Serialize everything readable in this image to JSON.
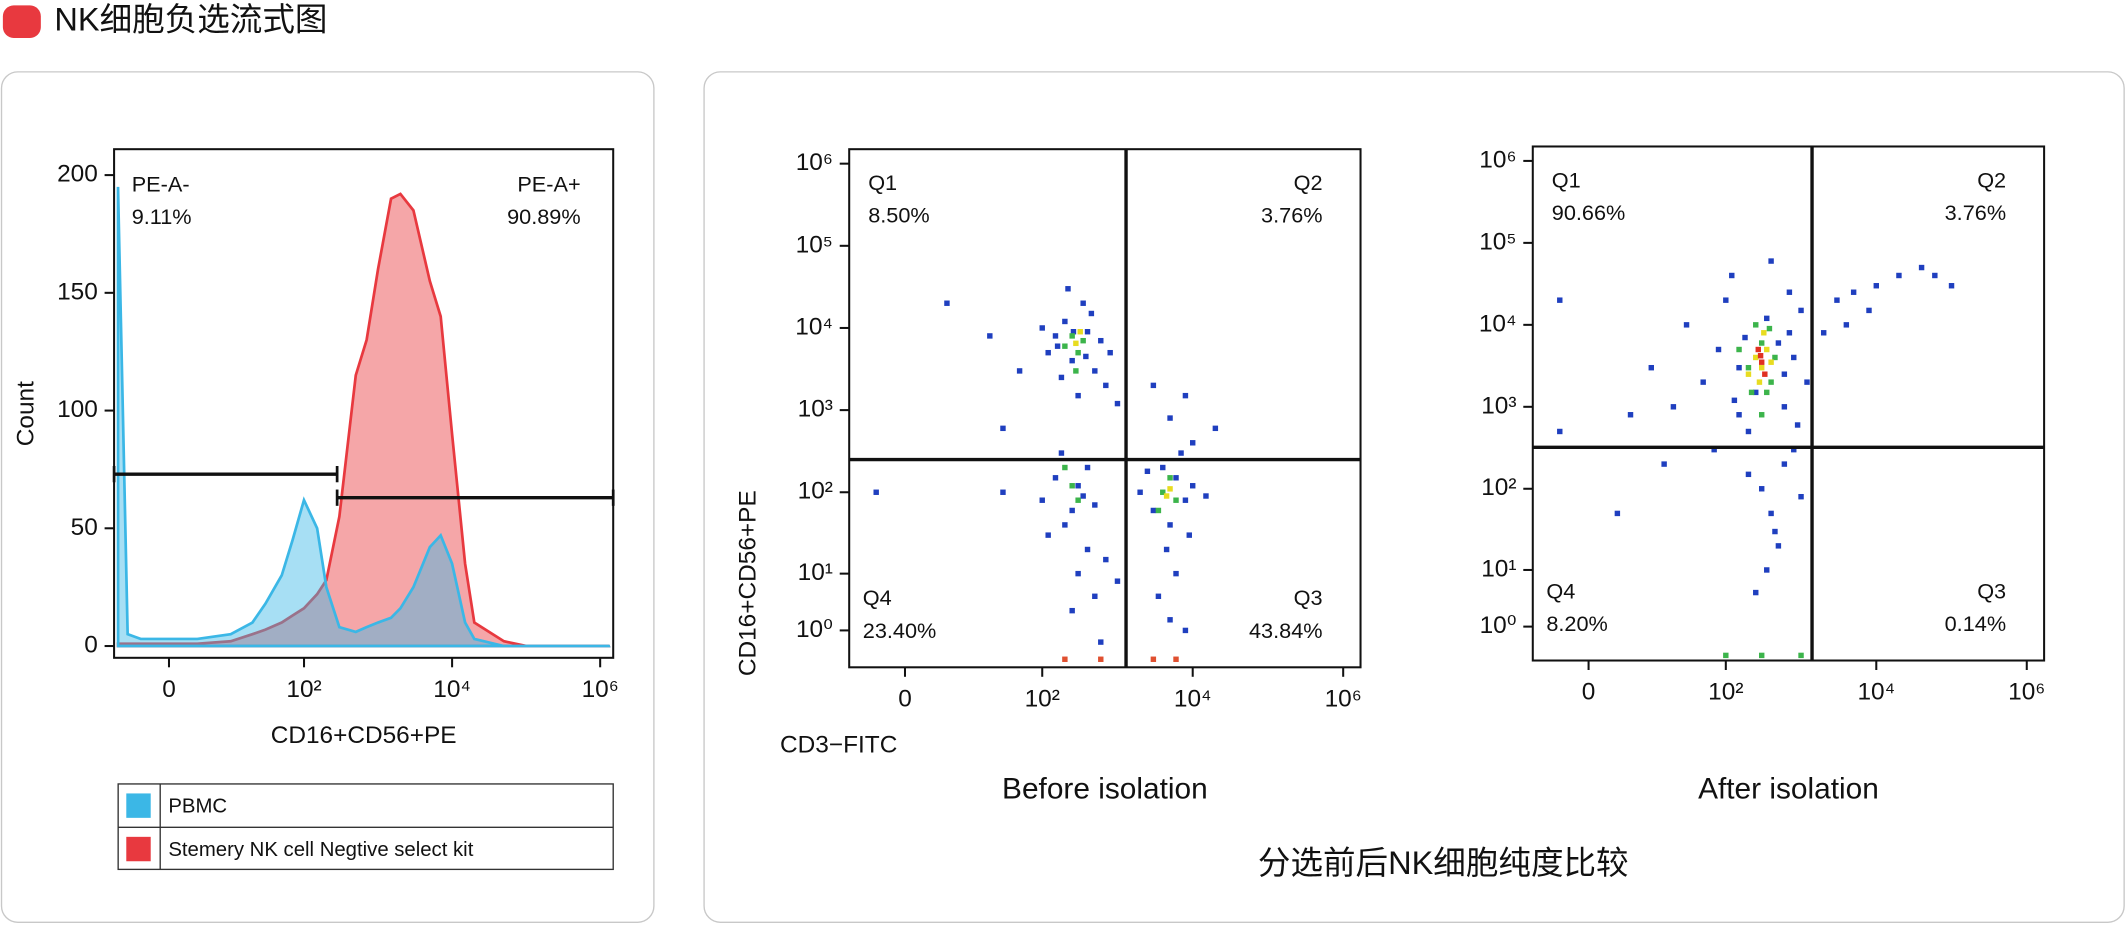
{
  "header": {
    "title": "NK细胞负选流式图"
  },
  "chart_data": [
    {
      "type": "area",
      "xlabel": "CD16+CD56+PE",
      "ylabel": "Count",
      "xscale": "biexponential",
      "x": [
        -7,
        -5,
        -3,
        0,
        3,
        10,
        20,
        30,
        50,
        70,
        100,
        150,
        200,
        300,
        500,
        700,
        1000,
        1500,
        2000,
        3000,
        5000,
        7000,
        10000,
        15000,
        20000,
        50000,
        100000,
        1000000,
        1300000
      ],
      "series": [
        {
          "name": "Stemery NK cell Negtive select kit",
          "color": "#e8393f",
          "values": [
            1,
            1,
            1,
            1,
            1,
            2,
            5,
            7,
            10,
            13,
            16,
            22,
            28,
            55,
            115,
            130,
            160,
            190,
            192,
            185,
            155,
            140,
            90,
            35,
            10,
            2,
            0,
            0,
            0
          ]
        },
        {
          "name": "PBMC",
          "color": "#3bb7e6",
          "values": [
            195,
            5,
            3,
            3,
            3,
            5,
            10,
            18,
            30,
            45,
            62,
            50,
            25,
            8,
            6,
            8,
            10,
            12,
            16,
            25,
            42,
            47,
            35,
            10,
            3,
            0,
            0,
            0,
            0
          ]
        }
      ],
      "xlim": [
        -8,
        1500000
      ],
      "ylim": [
        -5,
        211
      ],
      "xticks": [
        0,
        {
          "value": 100,
          "label": "10²"
        },
        {
          "value": 10000,
          "label": "10⁴"
        },
        {
          "value": 1000000,
          "label": "10⁶"
        }
      ],
      "yticks": [
        0,
        50,
        100,
        150,
        200
      ],
      "gates": [
        {
          "label": "PE-A-",
          "percent": "9.11%",
          "x": [
            -8,
            280
          ],
          "y": 73
        },
        {
          "label": "PE-A+",
          "percent": "90.89%",
          "x": [
            280,
            1500000
          ],
          "y": 63
        }
      ],
      "legend": "bottom"
    },
    {
      "type": "scatter",
      "title": "Before isolation",
      "xlabel": "CD3−FITC",
      "ylabel": "CD16+CD56+PE",
      "xscale": "biexponential",
      "yscale": "biexponential",
      "xlim": [
        -8,
        1700000
      ],
      "ylim": [
        -2.3,
        1500000
      ],
      "xticks": [
        0,
        {
          "value": 100,
          "label": "10²"
        },
        {
          "value": 10000,
          "label": "10⁴"
        },
        {
          "value": 1000000,
          "label": "10⁶"
        }
      ],
      "yticks": [
        {
          "value": 1,
          "label": "10⁰"
        },
        {
          "value": 10,
          "label": "10¹"
        },
        {
          "value": 100,
          "label": "10²"
        },
        {
          "value": 1000,
          "label": "10³"
        },
        {
          "value": 10000,
          "label": "10⁴"
        },
        {
          "value": 100000,
          "label": "10⁵"
        },
        {
          "value": 1000000,
          "label": "10⁶"
        }
      ],
      "gate": {
        "x": 1300,
        "y": 250
      },
      "quadrants": [
        {
          "name": "Q1",
          "percent": "8.50%"
        },
        {
          "name": "Q2",
          "percent": "3.76%"
        },
        {
          "name": "Q3",
          "percent": "43.84%"
        },
        {
          "name": "Q4",
          "percent": "23.40%"
        }
      ],
      "series": [
        {
          "color": "#1f3fbf",
          "x": [
            150,
            200,
            250,
            400,
            500,
            120,
            350,
            600,
            180,
            450,
            800,
            100,
            220,
            700,
            300,
            260,
            160,
            380,
            5,
            20,
            1000,
            50,
            30,
            3000,
            5000,
            8000,
            20000,
            10000,
            2000,
            3000,
            4000,
            6000,
            8000,
            10000,
            5000,
            7000,
            2500,
            15000,
            4500,
            6000,
            3500,
            9000,
            100,
            150,
            250,
            300,
            400,
            200,
            350,
            500,
            120,
            180,
            300,
            500,
            250,
            700,
            1000,
            5000,
            8000,
            600,
            30,
            -3,
            400
          ],
          "y": [
            8000,
            12000,
            4000,
            9000,
            3000,
            5000,
            20000,
            7000,
            2500,
            15000,
            5000,
            10000,
            30000,
            2000,
            1500,
            9000,
            6000,
            4500,
            20000,
            8000,
            1200,
            3000,
            600,
            2000,
            800,
            1500,
            600,
            400,
            100,
            60,
            200,
            150,
            80,
            120,
            40,
            300,
            180,
            90,
            20,
            10,
            5,
            30,
            80,
            150,
            60,
            120,
            200,
            40,
            90,
            70,
            30,
            300,
            10,
            5,
            3,
            15,
            8,
            2,
            1,
            0,
            100,
            100,
            20
          ]
        },
        {
          "color": "#3cb44b",
          "x": [
            250,
            300,
            200,
            350,
            280,
            4000,
            5000,
            6000,
            3500,
            250,
            200,
            300
          ],
          "y": [
            8000,
            5000,
            6000,
            7000,
            3000,
            100,
            150,
            80,
            60,
            120,
            200,
            80
          ]
        },
        {
          "color": "#e8dc20",
          "x": [
            280,
            320,
            5000,
            4500
          ],
          "y": [
            6500,
            9000,
            110,
            90
          ]
        },
        {
          "color": "#e05030",
          "x": [
            200,
            600,
            3000,
            6000
          ],
          "y": [
            -1.5,
            -1.5,
            -1.5,
            -1.5
          ]
        }
      ]
    },
    {
      "type": "scatter",
      "title": "After isolation",
      "xscale": "biexponential",
      "yscale": "biexponential",
      "xlim": [
        -8,
        1700000
      ],
      "ylim": [
        -2,
        1500000
      ],
      "xticks": [
        0,
        {
          "value": 100,
          "label": "10²"
        },
        {
          "value": 10000,
          "label": "10⁴"
        },
        {
          "value": 1000000,
          "label": "10⁶"
        }
      ],
      "yticks": [
        {
          "value": 1,
          "label": "10⁰"
        },
        {
          "value": 10,
          "label": "10¹"
        },
        {
          "value": 100,
          "label": "10²"
        },
        {
          "value": 1000,
          "label": "10³"
        },
        {
          "value": 10000,
          "label": "10⁴"
        },
        {
          "value": 100000,
          "label": "10⁵"
        },
        {
          "value": 1000000,
          "label": "10⁶"
        }
      ],
      "gate": {
        "x": 1400,
        "y": 320
      },
      "quadrants": [
        {
          "name": "Q1",
          "percent": "90.66%"
        },
        {
          "name": "Q2",
          "percent": "3.76%"
        },
        {
          "name": "Q3",
          "percent": "0.14%"
        },
        {
          "name": "Q4",
          "percent": "8.20%"
        }
      ],
      "series": [
        {
          "color": "#1f3fbf",
          "x": [
            50,
            80,
            100,
            150,
            600,
            800,
            1000,
            400,
            200,
            30,
            10,
            5,
            70,
            900,
            120,
            700,
            300,
            400,
            500,
            350,
            250,
            600,
            450,
            200,
            800,
            1200,
            1000,
            -3,
            -3,
            20,
            3,
            15,
            3000,
            5000,
            10000,
            20000,
            40000,
            60000,
            2000,
            8000,
            100000,
            4000,
            150,
            250,
            500,
            350,
            180,
            600,
            130,
            700
          ],
          "y": [
            2000,
            5000,
            20000,
            800,
            1000,
            4000,
            15000,
            60000,
            500,
            10000,
            3000,
            800,
            300,
            600,
            40000,
            25000,
            100,
            50,
            20,
            10,
            5,
            200,
            30,
            150,
            300,
            2000,
            80,
            20000,
            500,
            1000,
            50,
            200,
            20000,
            25000,
            30000,
            40000,
            50000,
            40000,
            8000,
            15000,
            30000,
            10000,
            3000,
            1500,
            6000,
            12000,
            7000,
            2500,
            1200,
            8000
          ]
        },
        {
          "color": "#3cb44b",
          "x": [
            200,
            300,
            400,
            250,
            350,
            150,
            450,
            300,
            220,
            380,
            100,
            300,
            1000
          ],
          "y": [
            3000,
            6000,
            2000,
            10000,
            1500,
            5000,
            4000,
            800,
            1500,
            9000,
            -1.5,
            -1.5,
            -1.5
          ]
        },
        {
          "color": "#e8dc20",
          "x": [
            300,
            250,
            350,
            280,
            320,
            200,
            400
          ],
          "y": [
            3000,
            4000,
            5000,
            2000,
            8000,
            2500,
            3500
          ]
        },
        {
          "color": "#e03020",
          "x": [
            300,
            330,
            270,
            290
          ],
          "y": [
            3500,
            2500,
            5000,
            4200
          ]
        }
      ]
    }
  ],
  "caption": "分选前后NK细胞纯度比较"
}
